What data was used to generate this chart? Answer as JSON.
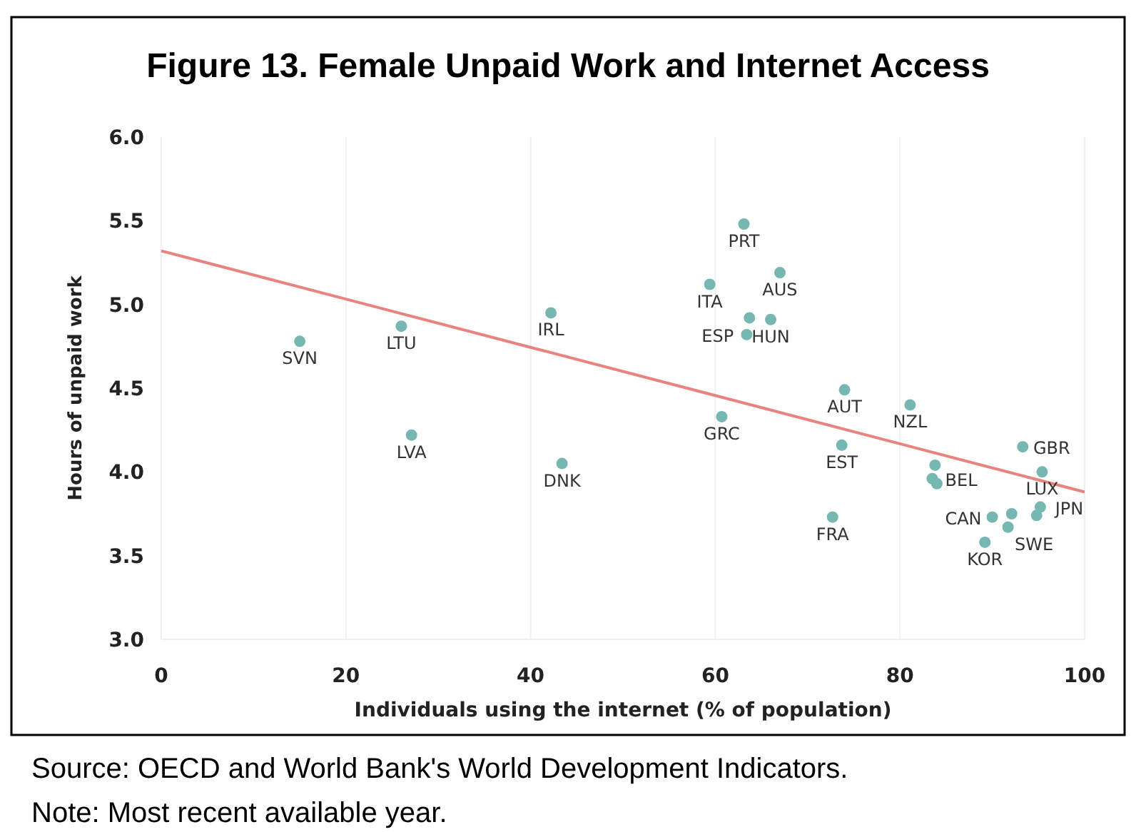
{
  "chart_data": {
    "type": "scatter",
    "title": "Figure 13. Female Unpaid Work and Internet Access",
    "xlabel": "Individuals using the internet (% of population)",
    "ylabel": "Hours of unpaid work",
    "xlim": [
      0,
      100
    ],
    "xticks": [
      0,
      20,
      40,
      60,
      80,
      100
    ],
    "ylim": [
      3,
      6
    ],
    "yticks": [
      {
        "value": 3,
        "label": "3.0"
      },
      {
        "value": 3.5,
        "label": "3.5"
      },
      {
        "value": 4,
        "label": "4.0"
      },
      {
        "value": 4.5,
        "label": "4.5"
      },
      {
        "value": 5,
        "label": "5.0"
      },
      {
        "value": 5.5,
        "label": "5.5"
      },
      {
        "value": 6,
        "label": "6.0"
      }
    ],
    "grid": "x",
    "marker": "circle",
    "series": [
      {
        "color": "#76b7b2",
        "x": [
          15.0,
          26.0,
          42.2,
          27.1,
          43.4,
          63.1,
          67.0,
          59.4,
          63.7,
          66.0,
          63.4,
          74.0,
          81.1,
          60.7,
          73.7,
          72.7,
          93.3,
          95.4,
          83.8,
          83.5,
          84.0,
          90.0,
          92.1,
          91.7,
          89.2,
          95.2,
          94.8
        ],
        "values": [
          4.78,
          4.87,
          4.95,
          4.22,
          4.05,
          5.48,
          5.19,
          5.12,
          4.92,
          4.91,
          4.82,
          4.49,
          4.4,
          4.33,
          4.16,
          3.73,
          4.15,
          4.0,
          4.04,
          3.96,
          3.93,
          3.73,
          3.75,
          3.67,
          3.58,
          3.79,
          3.74
        ]
      },
      {
        "type": "line",
        "marker": "none",
        "color": "#e8837f",
        "x": [
          0,
          100
        ],
        "values": [
          5.32,
          3.88
        ]
      }
    ],
    "annotations": [
      {
        "text": "SVN",
        "x": 15.0,
        "y": 4.78
      },
      {
        "text": "LTU",
        "x": 26.0,
        "y": 4.87
      },
      {
        "text": "IRL",
        "x": 42.2,
        "y": 4.95
      },
      {
        "text": "LVA",
        "x": 27.1,
        "y": 4.22
      },
      {
        "text": "DNK",
        "x": 43.4,
        "y": 4.05
      },
      {
        "text": "PRT",
        "x": 63.1,
        "y": 5.48
      },
      {
        "text": "AUS",
        "x": 67.0,
        "y": 5.19
      },
      {
        "text": "ITA",
        "x": 59.4,
        "y": 5.12
      },
      {
        "text": "HUN",
        "x": 66.0,
        "y": 4.91
      },
      {
        "text": "ESP",
        "x": 63.4,
        "y": 4.82
      },
      {
        "text": "AUT",
        "x": 74.0,
        "y": 4.49
      },
      {
        "text": "NZL",
        "x": 81.1,
        "y": 4.4
      },
      {
        "text": "GRC",
        "x": 60.7,
        "y": 4.33
      },
      {
        "text": "EST",
        "x": 73.7,
        "y": 4.16
      },
      {
        "text": "FRA",
        "x": 72.7,
        "y": 3.73
      },
      {
        "text": "GBR",
        "x": 93.3,
        "y": 4.15
      },
      {
        "text": "LUX",
        "x": 95.4,
        "y": 4.0
      },
      {
        "text": "BEL",
        "x": 83.5,
        "y": 3.96
      },
      {
        "text": "CAN",
        "x": 90.0,
        "y": 3.73
      },
      {
        "text": "SWE",
        "x": 91.7,
        "y": 3.67
      },
      {
        "text": "KOR",
        "x": 89.2,
        "y": 3.58
      },
      {
        "text": "JPN",
        "x": 95.2,
        "y": 3.79
      },
      "Source: OECD and World Bank's World Development Indicators.",
      "Note: Most recent available year."
    ]
  }
}
